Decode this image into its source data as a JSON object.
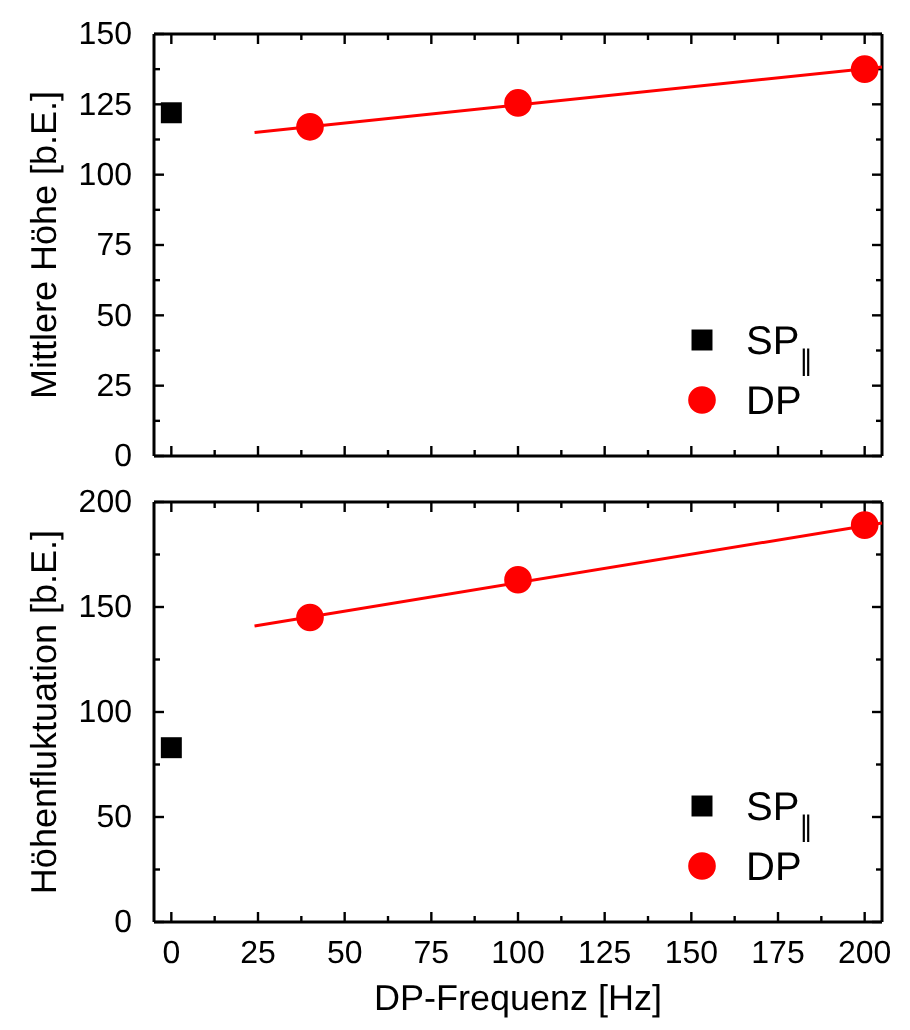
{
  "chart_data": [
    {
      "type": "scatter",
      "ylabel": "Mittlere Höhe [b.E.]",
      "xlim": [
        -5,
        205
      ],
      "ylim": [
        0,
        150
      ],
      "xticks": [
        0,
        {
          "value": 12.5,
          "label": null
        },
        25,
        {
          "value": 37.5,
          "label": null
        },
        50,
        {
          "value": 62.5,
          "label": null
        },
        75,
        {
          "value": 87.5,
          "label": null
        },
        100,
        {
          "value": 112.5,
          "label": null
        },
        125,
        {
          "value": 137.5,
          "label": null
        },
        150,
        {
          "value": 162.5,
          "label": null
        },
        175,
        {
          "value": 187.5,
          "label": null
        },
        200
      ],
      "yticks": [
        0,
        {
          "value": 12.5,
          "label": null
        },
        25,
        {
          "value": 37.5,
          "label": null
        },
        50,
        {
          "value": 62.5,
          "label": null
        },
        75,
        {
          "value": 87.5,
          "label": null
        },
        100,
        {
          "value": 112.5,
          "label": null
        },
        125,
        {
          "value": 137.5,
          "label": null
        },
        150
      ],
      "tick_labels": "y",
      "legend": "bottom right",
      "grid": false,
      "series": [
        {
          "name": "SP$_{∥}$",
          "color": "#000000",
          "marker": "square",
          "x": [
            0
          ],
          "values": [
            122
          ]
        },
        {
          "name": "DP",
          "color": "#ff0000",
          "marker": "circle",
          "x": [
            40,
            100,
            200
          ],
          "values": [
            117,
            125.5,
            137.5
          ]
        },
        {
          "type": "line",
          "color": "#ff0000",
          "marker": "none",
          "line_style": "solid",
          "x": [
            24,
            205
          ],
          "values": [
            115,
            138.3
          ]
        }
      ]
    },
    {
      "type": "scatter",
      "xlabel": "DP-Frequenz [Hz]",
      "ylabel": "Höhenfluktuation [b.E.]",
      "xlim": [
        -5,
        205
      ],
      "ylim": [
        0,
        200
      ],
      "xticks": [
        0,
        {
          "value": 12.5,
          "label": null
        },
        25,
        {
          "value": 37.5,
          "label": null
        },
        50,
        {
          "value": 62.5,
          "label": null
        },
        75,
        {
          "value": 87.5,
          "label": null
        },
        100,
        {
          "value": 112.5,
          "label": null
        },
        125,
        {
          "value": 137.5,
          "label": null
        },
        150,
        {
          "value": 162.5,
          "label": null
        },
        175,
        {
          "value": 187.5,
          "label": null
        },
        200
      ],
      "yticks": [
        0,
        {
          "value": 25,
          "label": null
        },
        50,
        {
          "value": 75,
          "label": null
        },
        100,
        {
          "value": 125,
          "label": null
        },
        150,
        {
          "value": 175,
          "label": null
        },
        200
      ],
      "legend": "bottom right",
      "grid": false,
      "series": [
        {
          "name": "SP$_{∥}$",
          "color": "#000000",
          "marker": "square",
          "x": [
            0
          ],
          "values": [
            83
          ]
        },
        {
          "name": "DP",
          "color": "#ff0000",
          "marker": "circle",
          "x": [
            40,
            100,
            200
          ],
          "values": [
            145,
            163,
            189
          ]
        },
        {
          "type": "line",
          "color": "#ff0000",
          "marker": "none",
          "line_style": "solid",
          "x": [
            24,
            205
          ],
          "values": [
            141,
            190
          ]
        }
      ]
    }
  ]
}
